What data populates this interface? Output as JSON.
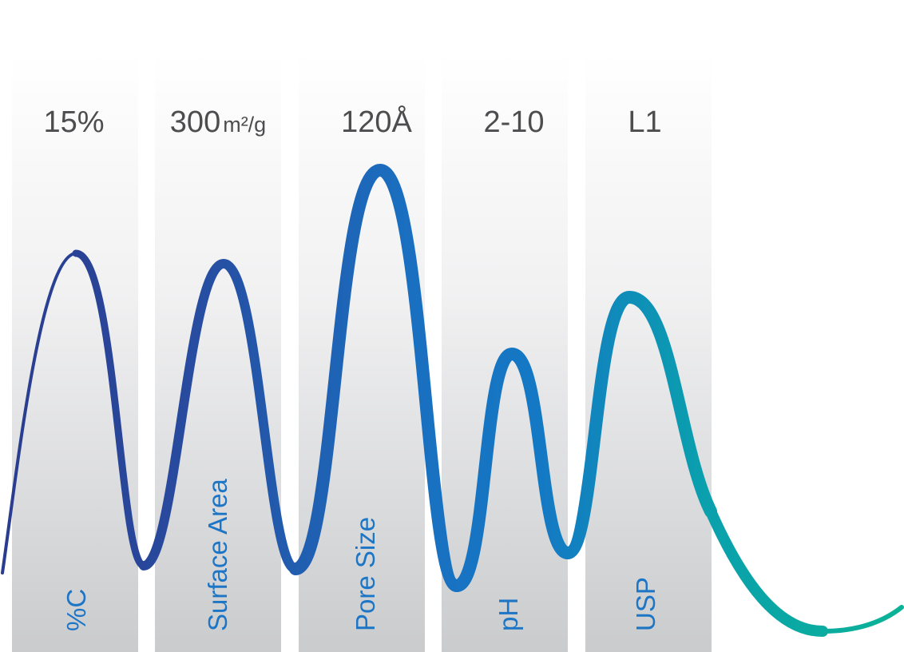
{
  "panels": [
    {
      "value": "15%",
      "unit": "",
      "label": "%C"
    },
    {
      "value": "300",
      "unit": "m²/g",
      "label": "Surface Area"
    },
    {
      "value": "120Å",
      "unit": "",
      "label": "Pore Size"
    },
    {
      "value": "2-10",
      "unit": "",
      "label": "pH"
    },
    {
      "value": "L1",
      "unit": "",
      "label": "USP"
    }
  ],
  "colors": {
    "wave_start": "#2a3c8f",
    "wave_mid": "#1a6fc0",
    "wave_end": "#0bb396",
    "value_text": "#4d4d4f",
    "label_text": "#1d75c6"
  }
}
